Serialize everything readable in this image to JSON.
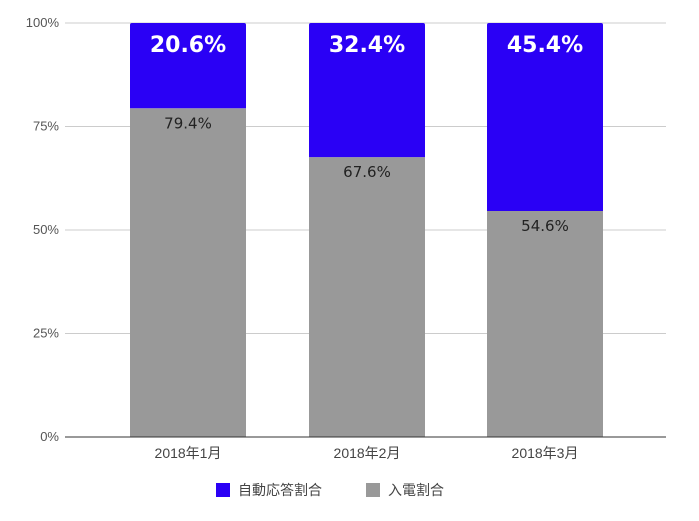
{
  "chart_data": {
    "type": "bar",
    "stacked": true,
    "categories": [
      "2018年1月",
      "2018年2月",
      "2018年3月"
    ],
    "series": [
      {
        "name": "入電割合",
        "color": "#999999",
        "values": [
          79.4,
          67.6,
          54.6
        ]
      },
      {
        "name": "自動応答割合",
        "color": "#2a00f5",
        "values": [
          20.6,
          32.4,
          45.4
        ]
      }
    ],
    "data_labels": {
      "auto": [
        "20.6%",
        "32.4%",
        "45.4%"
      ],
      "call": [
        "79.4%",
        "67.6%",
        "54.6%"
      ]
    },
    "y_ticks": [
      "0%",
      "25%",
      "50%",
      "75%",
      "100%"
    ],
    "ylim": [
      0,
      100
    ],
    "grid": true,
    "legend": {
      "position": "bottom",
      "items": [
        "自動応答割合",
        "入電割合"
      ]
    },
    "title": "",
    "xlabel": "",
    "ylabel": ""
  }
}
